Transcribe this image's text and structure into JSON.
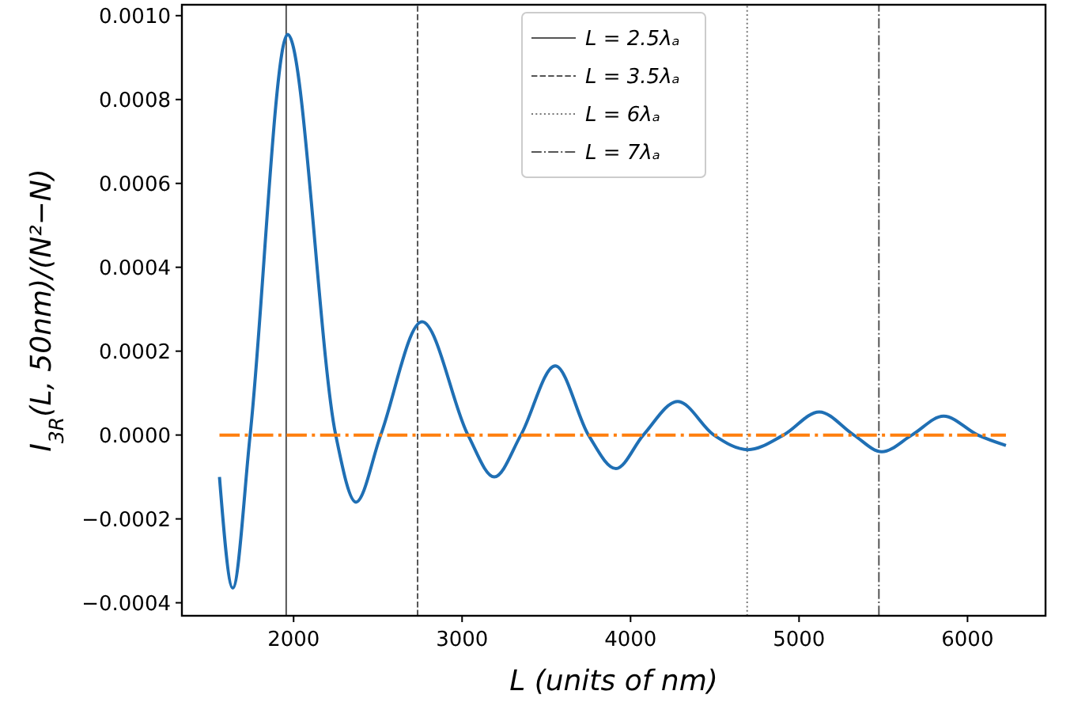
{
  "chart_data": {
    "type": "line",
    "xlabel": "L (units of nm)",
    "ylabel": "I$_{3R}$(L, 50nm)/(N²−N)",
    "xlim": [
      1337,
      6463
    ],
    "ylim": [
      -0.000431,
      0.001026
    ],
    "xticks": [
      2000,
      3000,
      4000,
      5000,
      6000
    ],
    "yticks": [
      {
        "value": -0.0004,
        "label": "−0.0004"
      },
      {
        "value": -0.0002,
        "label": "−0.0002"
      },
      {
        "value": 0,
        "label": "0.0000"
      },
      {
        "value": 0.0002,
        "label": "0.0002"
      },
      {
        "value": 0.0004,
        "label": "0.0004"
      },
      {
        "value": 0.0006,
        "label": "0.0006"
      },
      {
        "value": 0.0008,
        "label": "0.0008"
      },
      {
        "value": 0.001,
        "label": "0.0010"
      }
    ],
    "series": [
      {
        "color": "#555555",
        "line_style": "solid",
        "name": "L = 2.5λₐ",
        "x": [
          1956,
          1956
        ],
        "values": [
          -0.000431,
          0.001026
        ]
      },
      {
        "color": "#555555",
        "line_style": "dashed",
        "name": "L = 3.5λₐ",
        "x": [
          2736,
          2736
        ],
        "values": [
          -0.000431,
          0.001026
        ]
      },
      {
        "color": "#777777",
        "line_style": "dotted",
        "name": "L = 6λₐ",
        "x": [
          4692,
          4692
        ],
        "values": [
          -0.000431,
          0.001026
        ]
      },
      {
        "color": "#555555",
        "line_style": "dashdot",
        "name": "L = 7λₐ",
        "x": [
          5474,
          5474
        ],
        "values": [
          -0.000431,
          0.001026
        ]
      },
      {
        "color": "#1f6fb4",
        "line_style": "solid",
        "x": [
          1560,
          1639,
          1742,
          1965,
          2250,
          2370,
          2517,
          2762,
          3035,
          3191,
          3349,
          3553,
          3750,
          3913,
          4076,
          4280,
          4494,
          4697,
          4908,
          5120,
          5325,
          5491,
          5670,
          5858,
          6061,
          6228
        ],
        "values": [
          -0.0001,
          -0.000365,
          0,
          0.000955,
          0,
          -0.00016,
          0,
          0.00027,
          0,
          -0.0001,
          0,
          0.000165,
          0,
          -8e-05,
          0,
          8e-05,
          0,
          -3.5e-05,
          0,
          5.5e-05,
          0,
          -4e-05,
          0,
          4.5e-05,
          0,
          -2.5e-05
        ]
      },
      {
        "color": "#ff7f0e",
        "line_style": "dashdot",
        "x": [
          1560,
          6228
        ],
        "values": [
          0,
          0
        ]
      }
    ],
    "legend": "top",
    "grid": false
  }
}
